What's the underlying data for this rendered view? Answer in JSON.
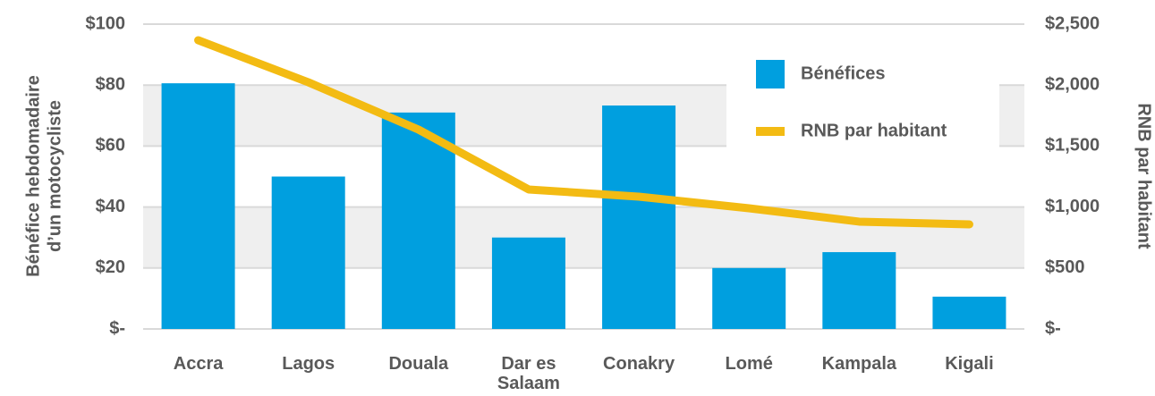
{
  "chart_data": {
    "type": "bar",
    "categories": [
      "Accra",
      "Lagos",
      "Douala",
      "Dar es Salaam",
      "Conakry",
      "Lomé",
      "Kampala",
      "Kigali"
    ],
    "series": [
      {
        "name": "Bénéfices",
        "type": "bar",
        "color": "#009fdf",
        "values": [
          80.6,
          50,
          71,
          30,
          73.3,
          20,
          25.2,
          10.6
        ]
      },
      {
        "name": "RNB par habitant",
        "type": "line",
        "axis": "y2",
        "color": "#f3bb13",
        "values": [
          2368,
          2023,
          1635,
          1144,
          1085,
          990,
          880,
          858
        ]
      }
    ],
    "ylabel": [
      "Bénéfice hebdomadaire",
      "d’un motocycliste"
    ],
    "y2label": "RNB par habitant",
    "ylim": [
      0,
      100
    ],
    "yticks": [
      {
        "value": 0,
        "label": "$-"
      },
      {
        "value": 20,
        "label": "$20"
      },
      {
        "value": 40,
        "label": "$40"
      },
      {
        "value": 60,
        "label": "$60"
      },
      {
        "value": 80,
        "label": "$80"
      },
      {
        "value": 100,
        "label": "$100"
      }
    ],
    "y2lim": [
      0,
      2500
    ],
    "y2ticks": [
      {
        "value": 0,
        "label": "$-"
      },
      {
        "value": 500,
        "label": "$500"
      },
      {
        "value": 1000,
        "label": "$1,000"
      },
      {
        "value": 1500,
        "label": "$1,500"
      },
      {
        "value": 2000,
        "label": "$2,000"
      },
      {
        "value": 2500,
        "label": "$2,500"
      }
    ],
    "grid": true,
    "legend": "upper right"
  }
}
